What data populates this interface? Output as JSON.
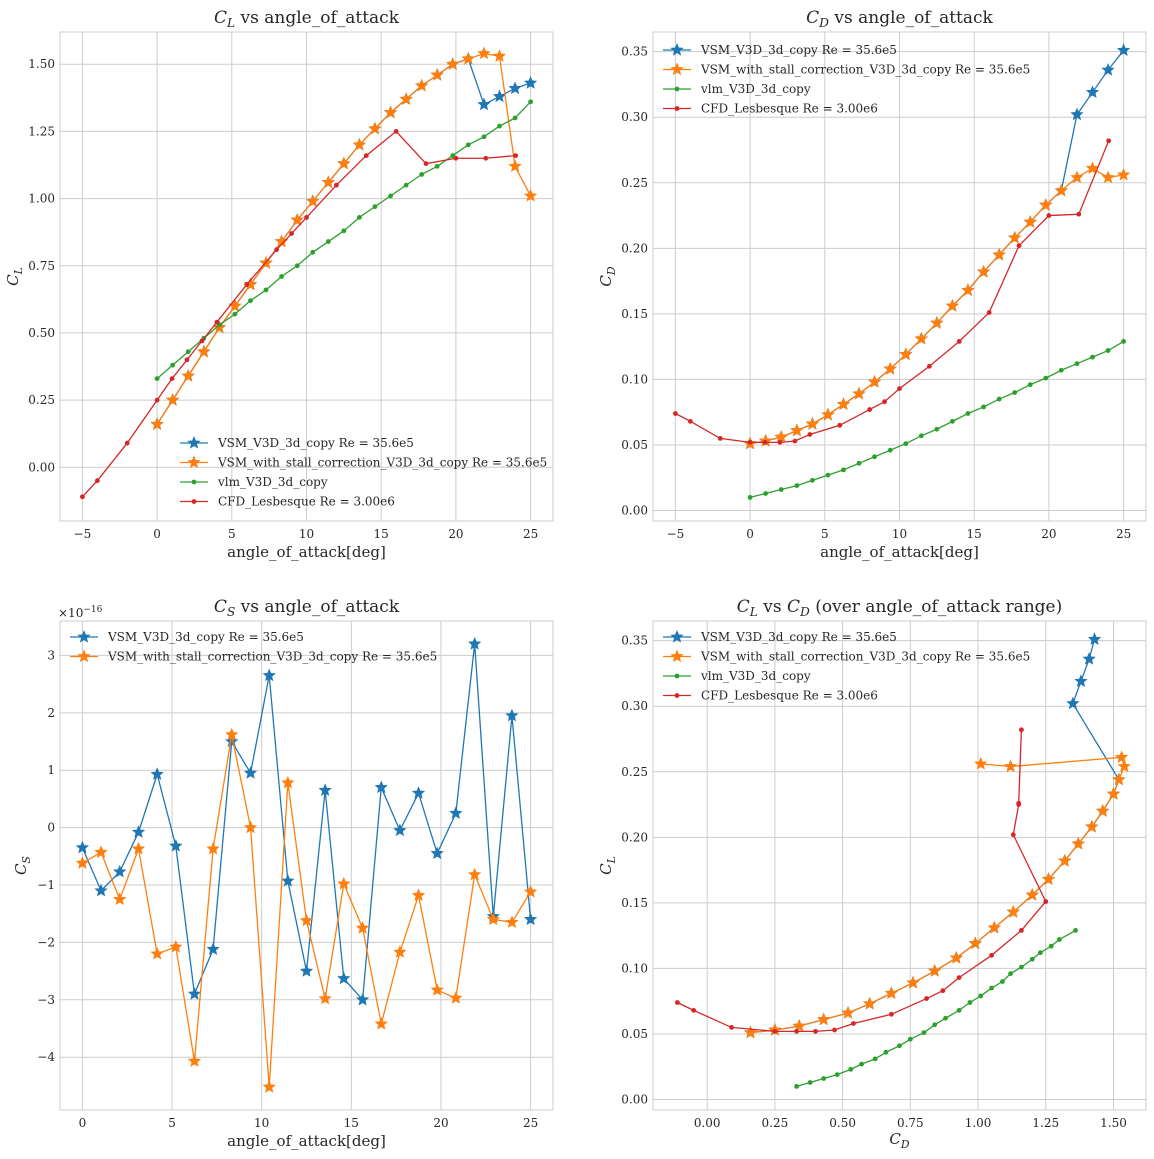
{
  "colors": {
    "VSM": "#1f77b4",
    "VSM_stall": "#ff7f0e",
    "vlm": "#2ca02c",
    "CFD": "#d62728"
  },
  "chart_data": [
    {
      "type": "line",
      "title_main": "C",
      "title_sub": "L",
      "title_rest": " vs angle_of_attack",
      "xlabel": "angle_of_attack[deg]",
      "ylabel_main": "C",
      "ylabel_sub": "L",
      "xlim": [
        -6.5,
        26.5
      ],
      "ylim": [
        -0.2,
        1.62
      ],
      "xticks": [
        -5,
        0,
        5,
        10,
        15,
        20,
        25
      ],
      "xtick_labels": [
        "−5",
        "0",
        "5",
        "10",
        "15",
        "20",
        "25"
      ],
      "yticks": [
        0,
        0.25,
        0.5,
        0.75,
        1.0,
        1.25,
        1.5
      ],
      "ytick_labels": [
        "0.00",
        "0.25",
        "0.50",
        "0.75",
        "1.00",
        "1.25",
        "1.50"
      ],
      "legend_position": "lower center",
      "series": [
        {
          "name": "VSM_V3D_3d_copy Re = 35.6e5",
          "marker": "star",
          "colorKey": "VSM",
          "x": [
            0,
            1.04,
            2.08,
            3.13,
            4.17,
            5.21,
            6.25,
            7.29,
            8.33,
            9.38,
            10.42,
            11.46,
            12.5,
            13.54,
            14.58,
            15.63,
            16.67,
            17.71,
            18.75,
            19.79,
            20.83,
            21.88,
            22.92,
            23.96,
            25
          ],
          "y": [
            0.16,
            0.25,
            0.34,
            0.43,
            0.52,
            0.6,
            0.68,
            0.76,
            0.84,
            0.92,
            0.99,
            1.06,
            1.13,
            1.2,
            1.26,
            1.32,
            1.37,
            1.42,
            1.46,
            1.5,
            1.52,
            1.35,
            1.38,
            1.41,
            1.43
          ]
        },
        {
          "name": "VSM_with_stall_correction_V3D_3d_copy Re = 35.6e5",
          "marker": "star",
          "colorKey": "VSM_stall",
          "x": [
            0,
            1.04,
            2.08,
            3.13,
            4.17,
            5.21,
            6.25,
            7.29,
            8.33,
            9.38,
            10.42,
            11.46,
            12.5,
            13.54,
            14.58,
            15.63,
            16.67,
            17.71,
            18.75,
            19.79,
            20.83,
            21.88,
            22.92,
            23.96,
            25
          ],
          "y": [
            0.16,
            0.25,
            0.34,
            0.43,
            0.52,
            0.6,
            0.68,
            0.76,
            0.84,
            0.92,
            0.99,
            1.06,
            1.13,
            1.2,
            1.26,
            1.32,
            1.37,
            1.42,
            1.46,
            1.5,
            1.52,
            1.54,
            1.53,
            1.12,
            1.01
          ]
        },
        {
          "name": "vlm_V3D_3d_copy",
          "marker": "dot",
          "colorKey": "vlm",
          "x": [
            0,
            1.04,
            2.08,
            3.13,
            4.17,
            5.21,
            6.25,
            7.29,
            8.33,
            9.38,
            10.42,
            11.46,
            12.5,
            13.54,
            14.58,
            15.63,
            16.67,
            17.71,
            18.75,
            19.79,
            20.83,
            21.88,
            22.92,
            23.96,
            25
          ],
          "y": [
            0.33,
            0.38,
            0.43,
            0.48,
            0.53,
            0.57,
            0.62,
            0.66,
            0.71,
            0.75,
            0.8,
            0.84,
            0.88,
            0.93,
            0.97,
            1.01,
            1.05,
            1.09,
            1.12,
            1.16,
            1.2,
            1.23,
            1.27,
            1.3,
            1.36
          ]
        },
        {
          "name": "CFD_Lesbesque Re = 3.00e6",
          "marker": "dot",
          "colorKey": "CFD",
          "x": [
            -5,
            -4,
            -2,
            0,
            1,
            2,
            3,
            4,
            6,
            8,
            9,
            10,
            12,
            14,
            16,
            18,
            20,
            22,
            24
          ],
          "y": [
            -0.11,
            -0.05,
            0.09,
            0.25,
            0.33,
            0.4,
            0.47,
            0.54,
            0.68,
            0.81,
            0.87,
            0.93,
            1.05,
            1.16,
            1.25,
            1.13,
            1.15,
            1.15,
            1.16
          ]
        }
      ]
    },
    {
      "type": "line",
      "title_main": "C",
      "title_sub": "D",
      "title_rest": " vs angle_of_attack",
      "xlabel": "angle_of_attack[deg]",
      "ylabel_main": "C",
      "ylabel_sub": "D",
      "xlim": [
        -6.5,
        26.5
      ],
      "ylim": [
        -0.008,
        0.365
      ],
      "xticks": [
        -5,
        0,
        5,
        10,
        15,
        20,
        25
      ],
      "xtick_labels": [
        "−5",
        "0",
        "5",
        "10",
        "15",
        "20",
        "25"
      ],
      "yticks": [
        0,
        0.05,
        0.1,
        0.15,
        0.2,
        0.25,
        0.3,
        0.35
      ],
      "ytick_labels": [
        "0.00",
        "0.05",
        "0.10",
        "0.15",
        "0.20",
        "0.25",
        "0.30",
        "0.35"
      ],
      "legend_position": "upper left",
      "series": [
        {
          "name": "VSM_V3D_3d_copy Re = 35.6e5",
          "marker": "star",
          "colorKey": "VSM",
          "x": [
            0,
            1.04,
            2.08,
            3.13,
            4.17,
            5.21,
            6.25,
            7.29,
            8.33,
            9.38,
            10.42,
            11.46,
            12.5,
            13.54,
            14.58,
            15.63,
            16.67,
            17.71,
            18.75,
            19.79,
            20.83,
            21.88,
            22.92,
            23.96,
            25
          ],
          "y": [
            0.051,
            0.053,
            0.056,
            0.061,
            0.066,
            0.073,
            0.081,
            0.089,
            0.098,
            0.108,
            0.119,
            0.131,
            0.143,
            0.156,
            0.168,
            0.182,
            0.195,
            0.208,
            0.22,
            0.233,
            0.244,
            0.302,
            0.319,
            0.336,
            0.351
          ]
        },
        {
          "name": "VSM_with_stall_correction_V3D_3d_copy Re = 35.6e5",
          "marker": "star",
          "colorKey": "VSM_stall",
          "x": [
            0,
            1.04,
            2.08,
            3.13,
            4.17,
            5.21,
            6.25,
            7.29,
            8.33,
            9.38,
            10.42,
            11.46,
            12.5,
            13.54,
            14.58,
            15.63,
            16.67,
            17.71,
            18.75,
            19.79,
            20.83,
            21.88,
            22.92,
            23.96,
            25
          ],
          "y": [
            0.051,
            0.053,
            0.056,
            0.061,
            0.066,
            0.073,
            0.081,
            0.089,
            0.098,
            0.108,
            0.119,
            0.131,
            0.143,
            0.156,
            0.168,
            0.182,
            0.195,
            0.208,
            0.22,
            0.233,
            0.244,
            0.254,
            0.261,
            0.254,
            0.256
          ]
        },
        {
          "name": "vlm_V3D_3d_copy",
          "marker": "dot",
          "colorKey": "vlm",
          "x": [
            0,
            1.04,
            2.08,
            3.13,
            4.17,
            5.21,
            6.25,
            7.29,
            8.33,
            9.38,
            10.42,
            11.46,
            12.5,
            13.54,
            14.58,
            15.63,
            16.67,
            17.71,
            18.75,
            19.79,
            20.83,
            21.88,
            22.92,
            23.96,
            25
          ],
          "y": [
            0.01,
            0.013,
            0.016,
            0.019,
            0.023,
            0.027,
            0.031,
            0.036,
            0.041,
            0.046,
            0.051,
            0.057,
            0.062,
            0.068,
            0.074,
            0.079,
            0.085,
            0.09,
            0.096,
            0.101,
            0.107,
            0.112,
            0.117,
            0.122,
            0.129
          ]
        },
        {
          "name": "CFD_Lesbesque Re = 3.00e6",
          "marker": "dot",
          "colorKey": "CFD",
          "x": [
            -5,
            -4,
            -2,
            0,
            1,
            2,
            3,
            4,
            6,
            8,
            9,
            10,
            12,
            14,
            16,
            18,
            20,
            22,
            24
          ],
          "y": [
            0.074,
            0.068,
            0.055,
            0.052,
            0.052,
            0.052,
            0.053,
            0.058,
            0.065,
            0.077,
            0.083,
            0.093,
            0.11,
            0.129,
            0.151,
            0.202,
            0.225,
            0.226,
            0.282
          ]
        }
      ]
    },
    {
      "type": "line",
      "title_main": "C",
      "title_sub": "S",
      "title_rest": " vs angle_of_attack",
      "xlabel": "angle_of_attack[deg]",
      "ylabel_main": "C",
      "ylabel_sub": "S",
      "scale_label_base": "×10",
      "scale_label_exp": "−16",
      "xlim": [
        -1.25,
        26.25
      ],
      "ylim": [
        -4.92,
        3.6
      ],
      "xticks": [
        0,
        5,
        10,
        15,
        20,
        25
      ],
      "xtick_labels": [
        "0",
        "5",
        "10",
        "15",
        "20",
        "25"
      ],
      "yticks": [
        -4,
        -3,
        -2,
        -1,
        0,
        1,
        2,
        3
      ],
      "ytick_labels": [
        "−4",
        "−3",
        "−2",
        "−1",
        "0",
        "1",
        "2",
        "3"
      ],
      "legend_position": "upper left",
      "series": [
        {
          "name": "VSM_V3D_3d_copy Re = 35.6e5",
          "marker": "star",
          "colorKey": "VSM",
          "x": [
            0,
            1.04,
            2.08,
            3.13,
            4.17,
            5.21,
            6.25,
            7.29,
            8.33,
            9.38,
            10.42,
            11.46,
            12.5,
            13.54,
            14.58,
            15.63,
            16.67,
            17.71,
            18.75,
            19.79,
            20.83,
            21.88,
            22.92,
            23.96,
            25
          ],
          "y": [
            -0.35,
            -1.1,
            -0.77,
            -0.08,
            0.93,
            -0.32,
            -2.9,
            -2.12,
            1.5,
            0.95,
            2.65,
            -0.93,
            -2.5,
            0.65,
            -2.63,
            -3.0,
            0.7,
            -0.05,
            0.6,
            -0.45,
            0.25,
            3.2,
            -1.55,
            1.95,
            -1.6
          ]
        },
        {
          "name": "VSM_with_stall_correction_V3D_3d_copy Re = 35.6e5",
          "marker": "star",
          "colorKey": "VSM_stall",
          "x": [
            0,
            1.04,
            2.08,
            3.13,
            4.17,
            5.21,
            6.25,
            7.29,
            8.33,
            9.38,
            10.42,
            11.46,
            12.5,
            13.54,
            14.58,
            15.63,
            16.67,
            17.71,
            18.75,
            19.79,
            20.83,
            21.88,
            22.92,
            23.96,
            25
          ],
          "y": [
            -0.62,
            -0.43,
            -1.25,
            -0.37,
            -2.2,
            -2.08,
            -4.07,
            -0.37,
            1.62,
            0.0,
            -4.52,
            0.78,
            -1.62,
            -2.98,
            -0.98,
            -1.75,
            -3.42,
            -2.17,
            -1.18,
            -2.83,
            -2.97,
            -0.82,
            -1.6,
            -1.65,
            -1.12
          ]
        }
      ]
    },
    {
      "type": "line",
      "title_main": "C",
      "title_sub": "L",
      "title_rest": " vs ",
      "title_main2": "C",
      "title_sub2": "D",
      "title_rest2": " (over angle_of_attack range)",
      "xlabel_main": "C",
      "xlabel_sub": "D",
      "ylabel_main": "C",
      "ylabel_sub": "L",
      "xlim": [
        -0.2,
        1.62
      ],
      "ylim": [
        -0.008,
        0.365
      ],
      "xticks": [
        0,
        0.25,
        0.5,
        0.75,
        1.0,
        1.25,
        1.5
      ],
      "xtick_labels": [
        "0.00",
        "0.25",
        "0.50",
        "0.75",
        "1.00",
        "1.25",
        "1.50"
      ],
      "yticks": [
        0,
        0.05,
        0.1,
        0.15,
        0.2,
        0.25,
        0.3,
        0.35
      ],
      "ytick_labels": [
        "0.00",
        "0.05",
        "0.10",
        "0.15",
        "0.20",
        "0.25",
        "0.30",
        "0.35"
      ],
      "legend_position": "upper left",
      "series": [
        {
          "name": "VSM_V3D_3d_copy Re = 35.6e5",
          "marker": "star",
          "colorKey": "VSM",
          "x": [
            0.16,
            0.25,
            0.34,
            0.43,
            0.52,
            0.6,
            0.68,
            0.76,
            0.84,
            0.92,
            0.99,
            1.06,
            1.13,
            1.2,
            1.26,
            1.32,
            1.37,
            1.42,
            1.46,
            1.5,
            1.52,
            1.35,
            1.38,
            1.41,
            1.43
          ],
          "y": [
            0.051,
            0.053,
            0.056,
            0.061,
            0.066,
            0.073,
            0.081,
            0.089,
            0.098,
            0.108,
            0.119,
            0.131,
            0.143,
            0.156,
            0.168,
            0.182,
            0.195,
            0.208,
            0.22,
            0.233,
            0.244,
            0.302,
            0.319,
            0.336,
            0.351
          ]
        },
        {
          "name": "VSM_with_stall_correction_V3D_3d_copy Re = 35.6e5",
          "marker": "star",
          "colorKey": "VSM_stall",
          "x": [
            0.16,
            0.25,
            0.34,
            0.43,
            0.52,
            0.6,
            0.68,
            0.76,
            0.84,
            0.92,
            0.99,
            1.06,
            1.13,
            1.2,
            1.26,
            1.32,
            1.37,
            1.42,
            1.46,
            1.5,
            1.52,
            1.54,
            1.53,
            1.12,
            1.01
          ],
          "y": [
            0.051,
            0.053,
            0.056,
            0.061,
            0.066,
            0.073,
            0.081,
            0.089,
            0.098,
            0.108,
            0.119,
            0.131,
            0.143,
            0.156,
            0.168,
            0.182,
            0.195,
            0.208,
            0.22,
            0.233,
            0.244,
            0.254,
            0.261,
            0.254,
            0.256
          ]
        },
        {
          "name": "vlm_V3D_3d_copy",
          "marker": "dot",
          "colorKey": "vlm",
          "x": [
            0.33,
            0.38,
            0.43,
            0.48,
            0.53,
            0.57,
            0.62,
            0.66,
            0.71,
            0.75,
            0.8,
            0.84,
            0.88,
            0.93,
            0.97,
            1.01,
            1.05,
            1.09,
            1.12,
            1.16,
            1.2,
            1.23,
            1.27,
            1.3,
            1.36
          ],
          "y": [
            0.01,
            0.013,
            0.016,
            0.019,
            0.023,
            0.027,
            0.031,
            0.036,
            0.041,
            0.046,
            0.051,
            0.057,
            0.062,
            0.068,
            0.074,
            0.079,
            0.085,
            0.09,
            0.096,
            0.101,
            0.107,
            0.112,
            0.117,
            0.122,
            0.129
          ]
        },
        {
          "name": "CFD_Lesbesque Re = 3.00e6",
          "marker": "dot",
          "colorKey": "CFD",
          "x": [
            -0.11,
            -0.05,
            0.09,
            0.25,
            0.33,
            0.4,
            0.47,
            0.54,
            0.68,
            0.81,
            0.87,
            0.93,
            1.05,
            1.16,
            1.25,
            1.13,
            1.15,
            1.15,
            1.16
          ],
          "y": [
            0.074,
            0.068,
            0.055,
            0.052,
            0.052,
            0.052,
            0.053,
            0.058,
            0.065,
            0.077,
            0.083,
            0.093,
            0.11,
            0.129,
            0.151,
            0.202,
            0.225,
            0.226,
            0.282
          ]
        }
      ]
    }
  ]
}
